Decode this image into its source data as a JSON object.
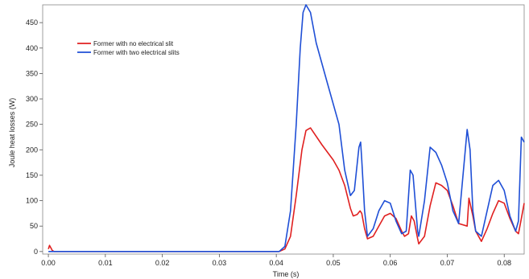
{
  "chart_data": {
    "type": "line",
    "title": "",
    "xlabel": "Time (s)",
    "ylabel": "Joule heat losses (W)",
    "xlim": [
      -0.001,
      0.0835
    ],
    "ylim": [
      -5,
      485
    ],
    "x_ticks": [
      0.0,
      0.01,
      0.02,
      0.03,
      0.04,
      0.05,
      0.06,
      0.07,
      0.08
    ],
    "x_tick_labels": [
      "0.00",
      "0.01",
      "0.02",
      "0.03",
      "0.04",
      "0.05",
      "0.06",
      "0.07",
      "0.08"
    ],
    "y_ticks": [
      0,
      50,
      100,
      150,
      200,
      250,
      300,
      350,
      400,
      450
    ],
    "y_tick_labels": [
      "0",
      "50",
      "100",
      "150",
      "200",
      "250",
      "300",
      "350",
      "400",
      "450"
    ],
    "grid": false,
    "legend_position": "top-left",
    "series": [
      {
        "name": "Former with no electrical slit",
        "color": "#e02020",
        "x": [
          0.0,
          0.0002,
          0.0004,
          0.0007,
          0.001,
          0.0015,
          0.002,
          0.01,
          0.02,
          0.03,
          0.0405,
          0.0415,
          0.0425,
          0.0435,
          0.0445,
          0.0452,
          0.046,
          0.048,
          0.05,
          0.051,
          0.052,
          0.053,
          0.0535,
          0.0542,
          0.0547,
          0.055,
          0.0555,
          0.056,
          0.057,
          0.058,
          0.059,
          0.06,
          0.061,
          0.062,
          0.0625,
          0.0632,
          0.0637,
          0.0642,
          0.0648,
          0.065,
          0.066,
          0.067,
          0.068,
          0.069,
          0.07,
          0.071,
          0.072,
          0.0735,
          0.0738,
          0.0745,
          0.075,
          0.076,
          0.077,
          0.078,
          0.079,
          0.08,
          0.081,
          0.082,
          0.0825,
          0.083,
          0.0835
        ],
        "values": [
          5,
          12,
          8,
          2,
          0,
          0,
          0,
          0,
          0,
          0,
          0,
          5,
          30,
          110,
          200,
          238,
          243,
          210,
          180,
          160,
          130,
          85,
          70,
          73,
          80,
          75,
          45,
          25,
          30,
          50,
          70,
          75,
          65,
          40,
          30,
          35,
          70,
          60,
          25,
          15,
          30,
          90,
          135,
          130,
          120,
          90,
          55,
          50,
          105,
          70,
          40,
          20,
          45,
          75,
          100,
          95,
          65,
          40,
          35,
          65,
          95
        ]
      },
      {
        "name": "Former with two electrical slits",
        "color": "#1f4fd6",
        "x": [
          0.0,
          0.002,
          0.01,
          0.02,
          0.03,
          0.0405,
          0.0415,
          0.0425,
          0.0435,
          0.0442,
          0.0447,
          0.0452,
          0.046,
          0.047,
          0.049,
          0.051,
          0.052,
          0.053,
          0.0537,
          0.0545,
          0.0548,
          0.055,
          0.0555,
          0.056,
          0.057,
          0.058,
          0.059,
          0.06,
          0.061,
          0.062,
          0.0628,
          0.0635,
          0.064,
          0.0648,
          0.065,
          0.066,
          0.067,
          0.068,
          0.069,
          0.07,
          0.071,
          0.072,
          0.0735,
          0.074,
          0.0745,
          0.075,
          0.076,
          0.077,
          0.078,
          0.079,
          0.08,
          0.081,
          0.082,
          0.0825,
          0.083,
          0.0835
        ],
        "values": [
          0,
          0,
          0,
          0,
          0,
          0,
          10,
          80,
          250,
          400,
          470,
          485,
          470,
          410,
          330,
          250,
          160,
          110,
          120,
          205,
          215,
          180,
          80,
          30,
          45,
          80,
          100,
          95,
          60,
          35,
          40,
          160,
          150,
          40,
          30,
          100,
          205,
          195,
          170,
          135,
          80,
          55,
          240,
          200,
          80,
          40,
          30,
          80,
          130,
          140,
          120,
          70,
          40,
          60,
          225,
          215
        ]
      }
    ]
  }
}
